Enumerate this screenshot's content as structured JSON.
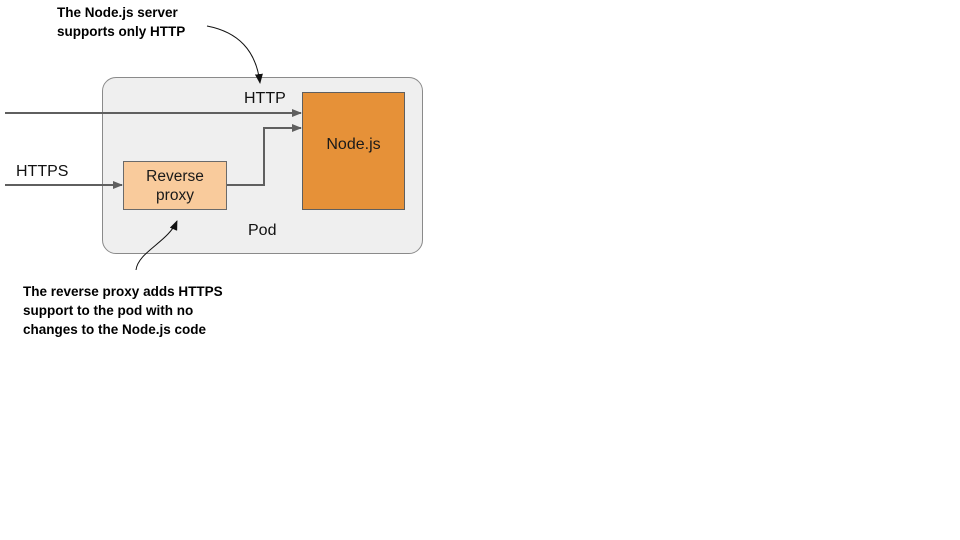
{
  "labels": {
    "http": "HTTP",
    "https": "HTTPS",
    "pod": "Pod",
    "nodejs": "Node.js",
    "proxy_line1": "Reverse",
    "proxy_line2": "proxy"
  },
  "annotations": {
    "top_line1": "The Node.js server",
    "top_line2": "supports only HTTP",
    "bottom_line1": "The reverse proxy adds HTTPS",
    "bottom_line2": "support to the pod with no",
    "bottom_line3": "changes to the Node.js code"
  },
  "colors": {
    "pod_fill": "#efefef",
    "nodejs_fill": "#e69138",
    "proxy_fill": "#f9cb9c",
    "arrow": "#5f5f5f"
  }
}
